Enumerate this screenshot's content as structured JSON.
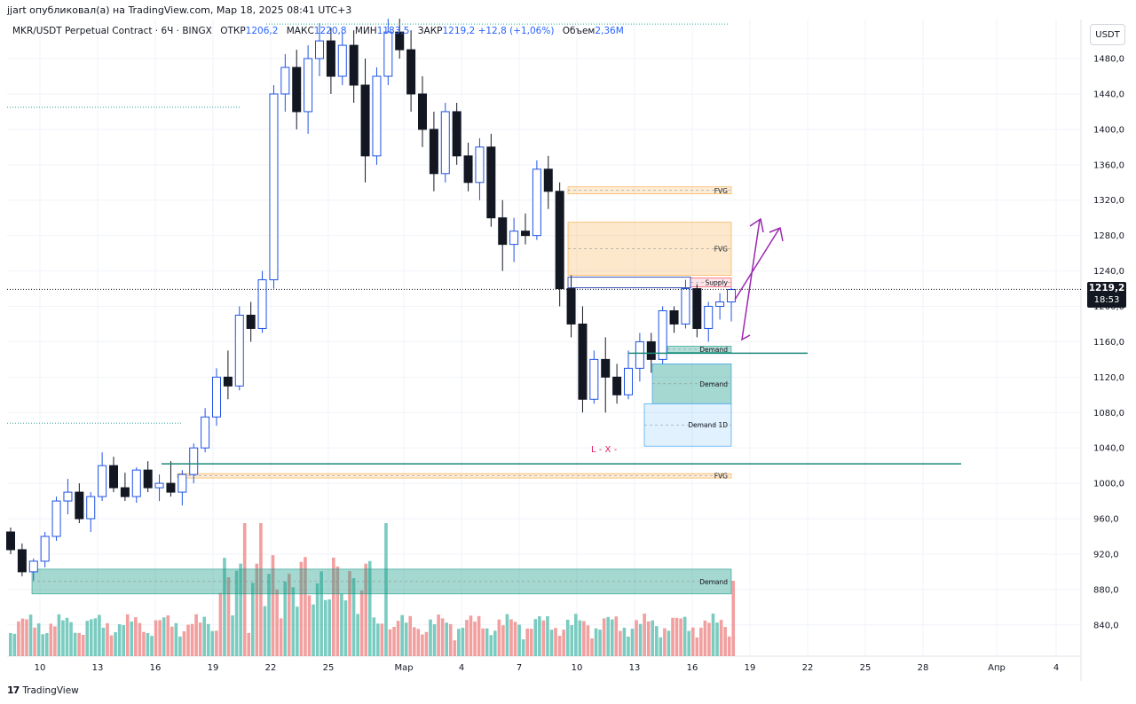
{
  "header": {
    "author_line": "jjart опубликовал(а) на TradingView.com, Мар 18, 2025 08:41 UTC+3"
  },
  "symbol": {
    "name": "MKR/USDT Perpetual Contract · 6Ч · BINGX",
    "open_label": "ОТКР",
    "open": "1206,2",
    "high_label": "МАКС",
    "high": "1220,8",
    "low_label": "МИН",
    "low": "1183,5",
    "close_label": "ЗАКР",
    "close": "1219,2",
    "change": "+12,8 (+1,06%)",
    "volume_label": "Объем",
    "volume": "2,36M"
  },
  "currency": "USDT",
  "last_price": {
    "price": "1219,2",
    "countdown": "18:53"
  },
  "footer": {
    "logo_mark": "17",
    "logo_text": "TradingView"
  },
  "colors": {
    "up": "#1e53e5",
    "down": "#131722",
    "vol_up": "#63c2b5",
    "vol_down": "#f08e8e",
    "fvg": "#f7a234",
    "demand": "#1f9e89",
    "supply": "#f23645",
    "arrow": "#9c27b0"
  },
  "chart_data": {
    "type": "candlestick",
    "y_axis": {
      "ticks": [
        840,
        880,
        920,
        960,
        1000,
        1040,
        1080,
        1120,
        1160,
        1200,
        1240,
        1280,
        1320,
        1360,
        1400,
        1440,
        1480
      ],
      "tick_labels": [
        "840,0",
        "880,0",
        "920,0",
        "960,0",
        "1000,0",
        "1040,0",
        "1080,0",
        "1120,0",
        "1160,0",
        "1200,0",
        "1240,0",
        "1280,0",
        "1320,0",
        "1360,0",
        "1400,0",
        "1440,0",
        "1480,0"
      ],
      "range": [
        805,
        1525
      ]
    },
    "x_axis": {
      "tick_labels": [
        "10",
        "13",
        "16",
        "19",
        "22",
        "25",
        "Мар",
        "4",
        "7",
        "10",
        "13",
        "16",
        "19",
        "22",
        "25",
        "28",
        "Апр",
        "4"
      ]
    },
    "candles_approx": [
      [
        945,
        950,
        920,
        925
      ],
      [
        925,
        932,
        895,
        900
      ],
      [
        900,
        915,
        890,
        912
      ],
      [
        912,
        945,
        905,
        940
      ],
      [
        940,
        985,
        935,
        980
      ],
      [
        980,
        1005,
        965,
        990
      ],
      [
        990,
        1000,
        955,
        960
      ],
      [
        960,
        990,
        945,
        985
      ],
      [
        985,
        1035,
        980,
        1020
      ],
      [
        1020,
        1030,
        990,
        995
      ],
      [
        995,
        1012,
        980,
        985
      ],
      [
        985,
        1018,
        978,
        1015
      ],
      [
        1015,
        1025,
        990,
        995
      ],
      [
        995,
        1010,
        980,
        1000
      ],
      [
        1000,
        1025,
        985,
        990
      ],
      [
        990,
        1015,
        975,
        1010
      ],
      [
        1010,
        1045,
        1000,
        1040
      ],
      [
        1040,
        1085,
        1035,
        1075
      ],
      [
        1075,
        1130,
        1065,
        1120
      ],
      [
        1120,
        1150,
        1095,
        1110
      ],
      [
        1110,
        1200,
        1105,
        1190
      ],
      [
        1190,
        1205,
        1160,
        1175
      ],
      [
        1175,
        1240,
        1170,
        1230
      ],
      [
        1230,
        1450,
        1220,
        1440
      ],
      [
        1440,
        1485,
        1420,
        1470
      ],
      [
        1470,
        1490,
        1400,
        1420
      ],
      [
        1420,
        1495,
        1395,
        1480
      ],
      [
        1480,
        1520,
        1460,
        1500
      ],
      [
        1500,
        1515,
        1440,
        1460
      ],
      [
        1460,
        1510,
        1450,
        1495
      ],
      [
        1495,
        1512,
        1430,
        1450
      ],
      [
        1450,
        1480,
        1340,
        1370
      ],
      [
        1370,
        1470,
        1360,
        1460
      ],
      [
        1460,
        1525,
        1450,
        1510
      ],
      [
        1510,
        1525,
        1480,
        1490
      ],
      [
        1490,
        1512,
        1420,
        1440
      ],
      [
        1440,
        1460,
        1380,
        1400
      ],
      [
        1400,
        1420,
        1330,
        1350
      ],
      [
        1350,
        1430,
        1340,
        1420
      ],
      [
        1420,
        1430,
        1360,
        1370
      ],
      [
        1370,
        1385,
        1330,
        1340
      ],
      [
        1340,
        1390,
        1320,
        1380
      ],
      [
        1380,
        1395,
        1290,
        1300
      ],
      [
        1300,
        1320,
        1240,
        1270
      ],
      [
        1270,
        1300,
        1250,
        1285
      ],
      [
        1285,
        1305,
        1270,
        1280
      ],
      [
        1280,
        1365,
        1275,
        1355
      ],
      [
        1355,
        1370,
        1310,
        1330
      ],
      [
        1330,
        1340,
        1200,
        1220
      ],
      [
        1220,
        1235,
        1165,
        1180
      ],
      [
        1180,
        1200,
        1080,
        1095
      ],
      [
        1095,
        1150,
        1090,
        1140
      ],
      [
        1140,
        1165,
        1080,
        1120
      ],
      [
        1120,
        1135,
        1090,
        1100
      ],
      [
        1100,
        1150,
        1095,
        1130
      ],
      [
        1130,
        1170,
        1115,
        1160
      ],
      [
        1160,
        1170,
        1125,
        1140
      ],
      [
        1140,
        1200,
        1135,
        1195
      ],
      [
        1195,
        1200,
        1170,
        1180
      ],
      [
        1180,
        1230,
        1175,
        1220
      ],
      [
        1220,
        1225,
        1165,
        1175
      ],
      [
        1175,
        1205,
        1160,
        1200
      ],
      [
        1200,
        1215,
        1185,
        1205
      ],
      [
        1205,
        1221,
        1183,
        1219
      ]
    ],
    "overlays": [
      {
        "type": "zone",
        "label": "FVG",
        "y": [
          1327,
          1335
        ]
      },
      {
        "type": "zone",
        "label": "FVG",
        "y": [
          1235,
          1295
        ]
      },
      {
        "type": "zone",
        "label": "Supply",
        "y": [
          1222,
          1232
        ]
      },
      {
        "type": "zone",
        "label": "Demand",
        "y": [
          1148,
          1155
        ]
      },
      {
        "type": "zone",
        "label": "Demand",
        "y": [
          1090,
          1135
        ]
      },
      {
        "type": "zone",
        "label": "Demand 1D",
        "y": [
          1042,
          1090
        ]
      },
      {
        "type": "zone",
        "label": "FVG",
        "y": [
          1006,
          1011
        ]
      },
      {
        "type": "zone",
        "label": "Demand",
        "y": [
          875,
          903
        ]
      }
    ],
    "hlines": [
      1147,
      1022
    ],
    "last_price": 1219.2,
    "cross_marker": "L - X -"
  }
}
